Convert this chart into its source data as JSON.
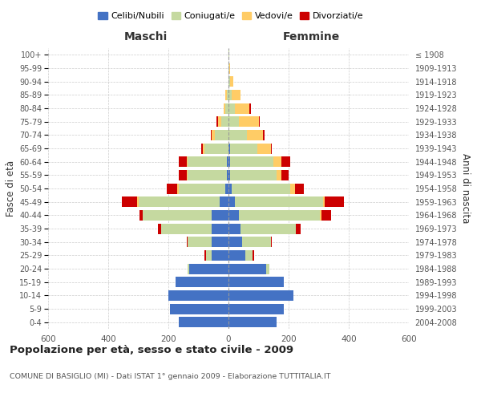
{
  "age_groups": [
    "0-4",
    "5-9",
    "10-14",
    "15-19",
    "20-24",
    "25-29",
    "30-34",
    "35-39",
    "40-44",
    "45-49",
    "50-54",
    "55-59",
    "60-64",
    "65-69",
    "70-74",
    "75-79",
    "80-84",
    "85-89",
    "90-94",
    "95-99",
    "100+"
  ],
  "birth_years": [
    "2004-2008",
    "1999-2003",
    "1994-1998",
    "1989-1993",
    "1984-1988",
    "1979-1983",
    "1974-1978",
    "1969-1973",
    "1964-1968",
    "1959-1963",
    "1954-1958",
    "1949-1953",
    "1944-1948",
    "1939-1943",
    "1934-1938",
    "1929-1933",
    "1924-1928",
    "1919-1923",
    "1914-1918",
    "1909-1913",
    "≤ 1908"
  ],
  "colors": {
    "celibi": "#4472C4",
    "coniugati": "#C5D9A0",
    "vedovi": "#FFCC66",
    "divorziati": "#CC0000"
  },
  "males": {
    "celibi": [
      165,
      195,
      200,
      175,
      130,
      55,
      55,
      55,
      55,
      30,
      10,
      5,
      5,
      0,
      0,
      0,
      0,
      0,
      0,
      0,
      0
    ],
    "coniugati": [
      0,
      0,
      0,
      0,
      5,
      20,
      80,
      170,
      230,
      270,
      155,
      130,
      130,
      80,
      45,
      25,
      10,
      5,
      0,
      0,
      0
    ],
    "vedovi": [
      0,
      0,
      0,
      0,
      0,
      0,
      0,
      0,
      0,
      5,
      5,
      5,
      5,
      5,
      10,
      10,
      5,
      5,
      0,
      0,
      0
    ],
    "divorziati": [
      0,
      0,
      0,
      0,
      0,
      5,
      5,
      10,
      10,
      50,
      35,
      25,
      25,
      5,
      5,
      5,
      0,
      0,
      0,
      0,
      0
    ]
  },
  "females": {
    "celibi": [
      160,
      185,
      215,
      185,
      125,
      55,
      45,
      40,
      35,
      20,
      10,
      5,
      5,
      5,
      0,
      0,
      0,
      0,
      0,
      0,
      0
    ],
    "coniugati": [
      0,
      0,
      0,
      0,
      10,
      25,
      95,
      185,
      270,
      295,
      195,
      155,
      145,
      90,
      60,
      35,
      20,
      10,
      5,
      3,
      2
    ],
    "vedovi": [
      0,
      0,
      0,
      0,
      0,
      0,
      0,
      0,
      5,
      5,
      15,
      15,
      25,
      45,
      55,
      65,
      50,
      30,
      10,
      3,
      0
    ],
    "divorziati": [
      0,
      0,
      0,
      0,
      0,
      5,
      5,
      15,
      30,
      65,
      30,
      25,
      30,
      5,
      5,
      5,
      5,
      0,
      0,
      0,
      0
    ]
  },
  "xlim": 600,
  "title": "Popolazione per età, sesso e stato civile - 2009",
  "subtitle": "COMUNE DI BASIGLIO (MI) - Dati ISTAT 1° gennaio 2009 - Elaborazione TUTTITALIA.IT",
  "ylabel_left": "Fasce di età",
  "ylabel_right": "Anni di nascita",
  "xlabel_left": "Maschi",
  "xlabel_right": "Femmine",
  "background_color": "#FFFFFF",
  "grid_color": "#CCCCCC"
}
